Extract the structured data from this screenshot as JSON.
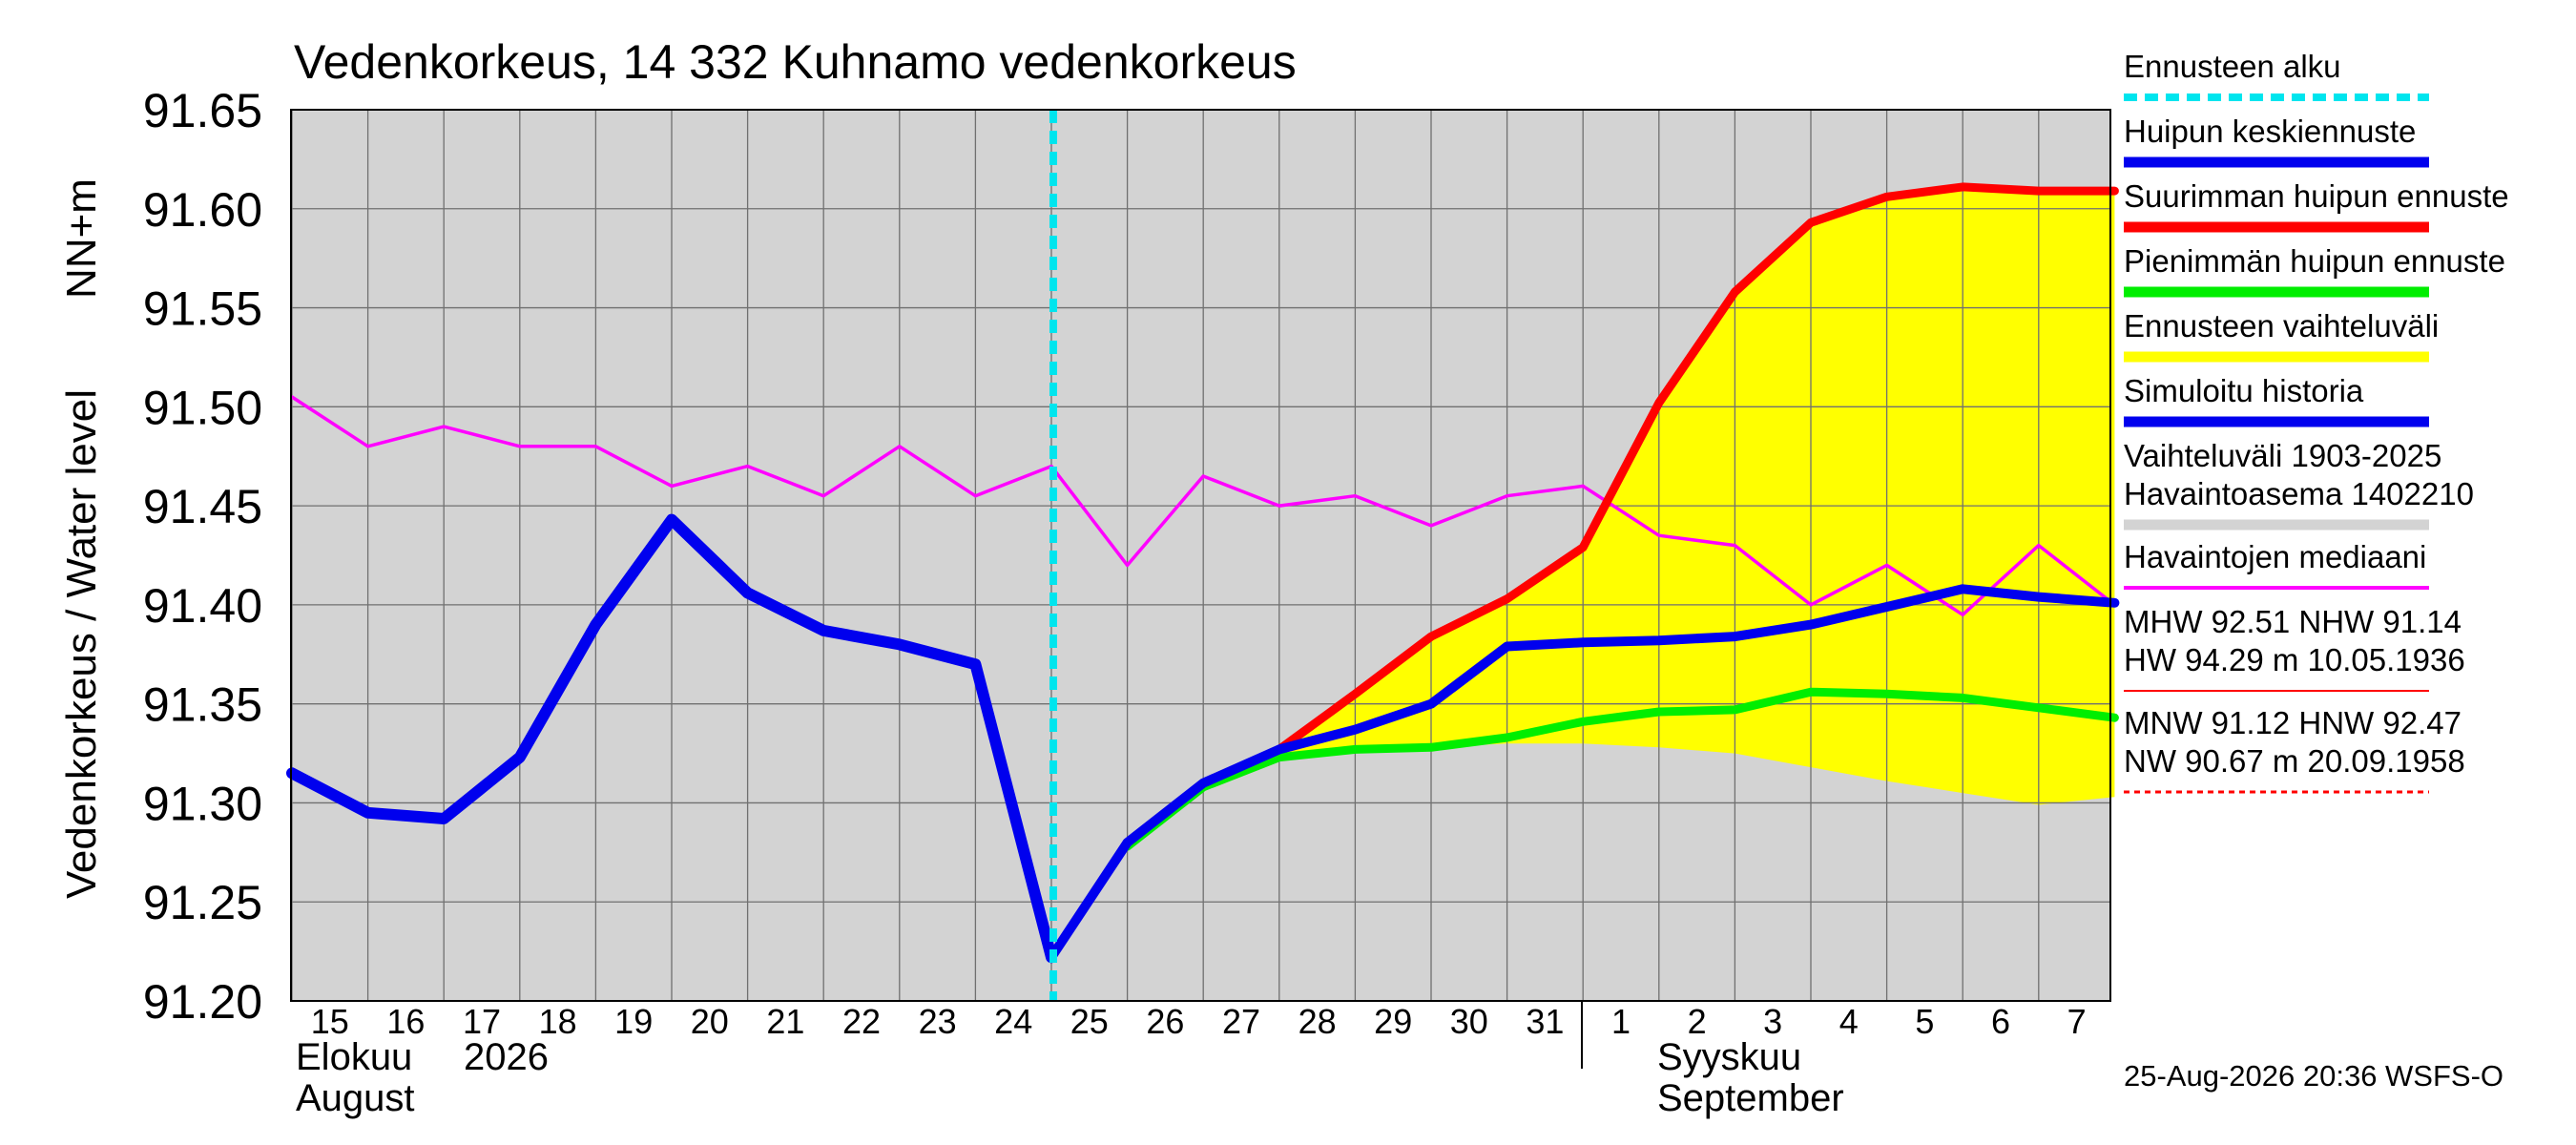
{
  "chart_data": {
    "type": "line",
    "title": "Vedenkorkeus, 14 332 Kuhnamo vedenkorkeus",
    "ylabel": "Vedenkorkeus / Water level",
    "yunit": "NN+m",
    "ylim": [
      91.2,
      91.65
    ],
    "yticks": [
      "91.20",
      "91.25",
      "91.30",
      "91.35",
      "91.40",
      "91.45",
      "91.50",
      "91.55",
      "91.60",
      "91.65"
    ],
    "grid": true,
    "x_day_labels": [
      "15",
      "16",
      "17",
      "18",
      "19",
      "20",
      "21",
      "22",
      "23",
      "24",
      "25",
      "26",
      "27",
      "28",
      "29",
      "30",
      "31",
      "1",
      "2",
      "3",
      "4",
      "5",
      "6",
      "7"
    ],
    "x_month_labels": [
      {
        "fi": "Elokuu",
        "year": "2026",
        "en": "August"
      },
      {
        "fi": "Syyskuu",
        "en": "September"
      }
    ],
    "forecast_start_index": 10,
    "series": [
      {
        "name": "Simuloitu historia",
        "color": "#0000ee",
        "values": [
          91.315,
          91.295,
          91.292,
          91.323,
          91.39,
          91.443,
          91.406,
          91.387,
          91.38,
          91.37,
          91.222
        ]
      },
      {
        "name": "Huipun keskiennuste",
        "color": "#0000ee",
        "values": [
          null,
          null,
          null,
          null,
          null,
          null,
          null,
          null,
          null,
          null,
          91.222,
          91.28,
          91.31,
          91.327,
          91.337,
          91.35,
          91.379,
          91.381,
          91.382,
          91.384,
          91.39,
          91.399,
          91.408,
          91.404,
          91.401
        ]
      },
      {
        "name": "Suurimman huipun ennuste",
        "color": "#ff0000",
        "values": [
          null,
          null,
          null,
          null,
          null,
          null,
          null,
          null,
          null,
          null,
          null,
          null,
          null,
          91.327,
          91.355,
          91.384,
          91.403,
          91.429,
          91.502,
          91.558,
          91.593,
          91.606,
          91.611,
          91.609,
          91.609
        ]
      },
      {
        "name": "Pienimmän huipun ennuste",
        "color": "#00ee00",
        "values": [
          null,
          null,
          null,
          null,
          null,
          null,
          null,
          null,
          null,
          null,
          null,
          91.278,
          91.308,
          91.323,
          91.327,
          91.328,
          91.333,
          91.341,
          91.346,
          91.347,
          91.356,
          91.355,
          91.353,
          91.348,
          91.343
        ]
      },
      {
        "name": "Havaintojen mediaani",
        "color": "#ff00ff",
        "values": [
          91.505,
          91.48,
          91.49,
          91.48,
          91.48,
          91.46,
          91.47,
          91.455,
          91.48,
          91.455,
          91.47,
          91.42,
          91.465,
          91.45,
          91.455,
          91.44,
          91.455,
          91.46,
          91.435,
          91.43,
          91.4,
          91.42,
          91.395,
          91.43,
          91.4
        ]
      }
    ],
    "range_band": {
      "name": "Ennusteen vaihteluväli",
      "color": "#ffff00",
      "upper": [
        null,
        null,
        null,
        null,
        null,
        null,
        null,
        null,
        null,
        null,
        null,
        null,
        null,
        91.327,
        91.355,
        91.384,
        91.403,
        91.429,
        91.502,
        91.558,
        91.593,
        91.606,
        91.611,
        91.609,
        91.609
      ],
      "lower": [
        null,
        null,
        null,
        null,
        null,
        null,
        null,
        null,
        null,
        null,
        null,
        null,
        null,
        91.323,
        91.327,
        91.328,
        91.33,
        91.33,
        91.328,
        91.325,
        91.318,
        91.311,
        91.305,
        91.299,
        91.303
      ]
    }
  },
  "legend": {
    "items": [
      {
        "label": "Ennusteen alku",
        "color": "#00e5ee",
        "style": "dashed"
      },
      {
        "label": "Huipun keskiennuste",
        "color": "#0000ee",
        "style": "solid"
      },
      {
        "label": "Suurimman huipun ennuste",
        "color": "#ff0000",
        "style": "solid"
      },
      {
        "label": "Pienimmän huipun ennuste",
        "color": "#00ee00",
        "style": "solid"
      },
      {
        "label": "Ennusteen vaihteluväli",
        "color": "#ffff00",
        "style": "solid"
      },
      {
        "label": "Simuloitu historia",
        "color": "#0000ee",
        "style": "solid"
      },
      {
        "label": "Vaihteluväli 1903-2025",
        "label2": "Havaintoasema 1402210",
        "color": "#d3d3d3",
        "style": "solid"
      },
      {
        "label": "Havaintojen mediaani",
        "color": "#ff00ff",
        "style": "solid"
      },
      {
        "label": "MHW  92.51 NHW  91.14",
        "label2": "HW  94.29 m 10.05.1936",
        "color": "#ff0000",
        "style": "thin"
      },
      {
        "label": "MNW  91.12 HNW  92.47",
        "label2": "NW  90.67 m 20.09.1958",
        "color": "#ff0000",
        "style": "dotted"
      }
    ]
  },
  "timestamp": "25-Aug-2026 20:36 WSFS-O"
}
